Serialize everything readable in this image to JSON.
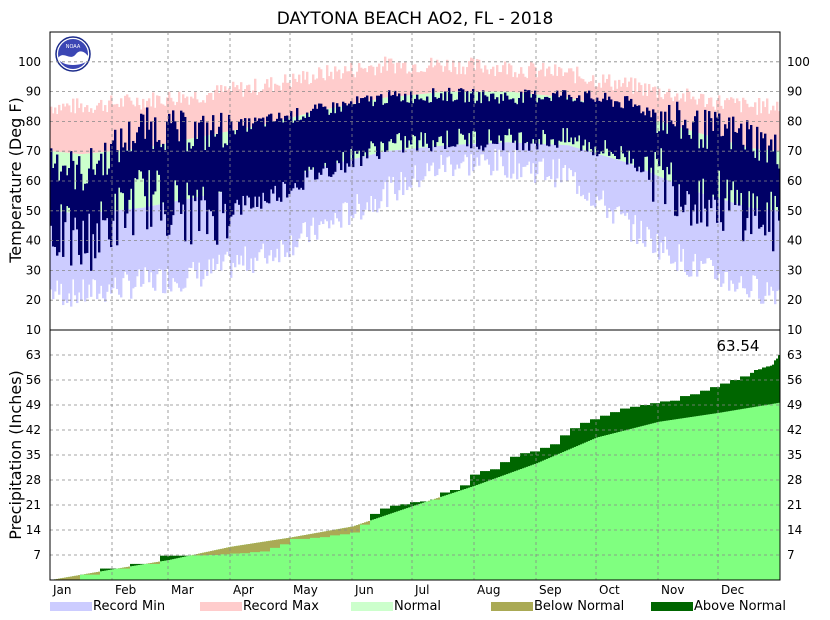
{
  "chart_data": {
    "type": "area",
    "title": "DAYTONA BEACH AO2, FL - 2018",
    "months": [
      "Jan",
      "Feb",
      "Mar",
      "Apr",
      "May",
      "Jun",
      "Jul",
      "Aug",
      "Sep",
      "Oct",
      "Nov",
      "Dec"
    ],
    "temperature": {
      "ylabel": "Temperature (Deg F)",
      "ylim": [
        10,
        110
      ],
      "ticks": [
        10,
        20,
        30,
        40,
        50,
        60,
        70,
        80,
        90,
        100
      ],
      "grid": true,
      "normal_high_by_month": [
        69,
        71,
        75,
        79,
        84,
        88,
        90,
        90,
        88,
        83,
        77,
        71
      ],
      "normal_low_by_month": [
        49,
        51,
        55,
        59,
        65,
        70,
        72,
        73,
        72,
        66,
        57,
        51
      ],
      "record_max_by_month": [
        85,
        87,
        89,
        92,
        96,
        99,
        99,
        98,
        96,
        92,
        88,
        85
      ],
      "record_min_by_month": [
        22,
        26,
        29,
        35,
        45,
        56,
        66,
        66,
        62,
        45,
        32,
        24
      ],
      "observed_high_by_month": [
        62,
        78,
        76,
        80,
        84,
        88,
        89,
        88,
        89,
        86,
        78,
        75
      ],
      "observed_low_by_month": [
        38,
        55,
        48,
        54,
        64,
        72,
        74,
        74,
        74,
        68,
        56,
        50
      ]
    },
    "precipitation": {
      "ylabel": "Precipitation (Inches)",
      "ylim": [
        0,
        70
      ],
      "ticks": [
        7,
        14,
        21,
        28,
        35,
        42,
        49,
        56,
        63
      ],
      "grid": true,
      "total_label": "63.54",
      "observed_cumulative_day": [
        0,
        1.5,
        3.2,
        4.5,
        6.8,
        6.9,
        7.0,
        7.2,
        7.4,
        7.5,
        7.8,
        8.0,
        9.0,
        10.0,
        11.5,
        11.8,
        12.0,
        12.5,
        12.8,
        13.3,
        15.5,
        18.5,
        20.0,
        20.8,
        21.2,
        21.8,
        22.0,
        22.5,
        24.5,
        25.2,
        26.5,
        29.5,
        30.5,
        31.0,
        33.0,
        34.5,
        35.5,
        36.0,
        37.0,
        38.0,
        40.5,
        42.5,
        44.0,
        45.0,
        46.0,
        47.0,
        48.0,
        48.5,
        49.0,
        49.5,
        50.0,
        50.2,
        51.5,
        52.0,
        53.0,
        54.0,
        55.0,
        56.0,
        57.0,
        58.0,
        58.8,
        59.0,
        59.5,
        59.8,
        60.0,
        60.3,
        61.5,
        62.0,
        63.0,
        63.5,
        63.54
      ],
      "observed_cumulative_x_day": [
        0,
        15,
        25,
        40,
        55,
        70,
        78,
        85,
        90,
        95,
        100,
        105,
        110,
        115,
        120,
        130,
        135,
        140,
        145,
        150,
        155,
        160,
        165,
        170,
        175,
        180,
        185,
        190,
        195,
        200,
        205,
        210,
        215,
        220,
        225,
        230,
        235,
        240,
        245,
        250,
        255,
        260,
        265,
        270,
        275,
        280,
        285,
        290,
        295,
        300,
        305,
        310,
        315,
        320,
        325,
        330,
        335,
        340,
        345,
        350,
        352,
        354,
        356,
        358,
        360,
        361,
        362,
        363,
        364,
        365,
        365
      ],
      "normal_cumulative_by_month_end": [
        3.0,
        5.6,
        9.3,
        11.9,
        15.0,
        20.7,
        26.4,
        32.7,
        39.9,
        44.3,
        46.8,
        49.7
      ]
    },
    "legend": {
      "position": "bottom",
      "items": [
        {
          "label": "Record Min",
          "color": "#ccccff"
        },
        {
          "label": "Record Max",
          "color": "#ffcccc"
        },
        {
          "label": "Normal",
          "color": "#ccffcc"
        },
        {
          "label": "Below Normal",
          "color": "#aaaa55"
        },
        {
          "label": "Above Normal",
          "color": "#006600"
        }
      ]
    },
    "colors": {
      "observed_temp": "#000066",
      "normal_precip_fill": "#80ff80",
      "above_normal": "#006600",
      "below_normal": "#aaaa55"
    }
  }
}
